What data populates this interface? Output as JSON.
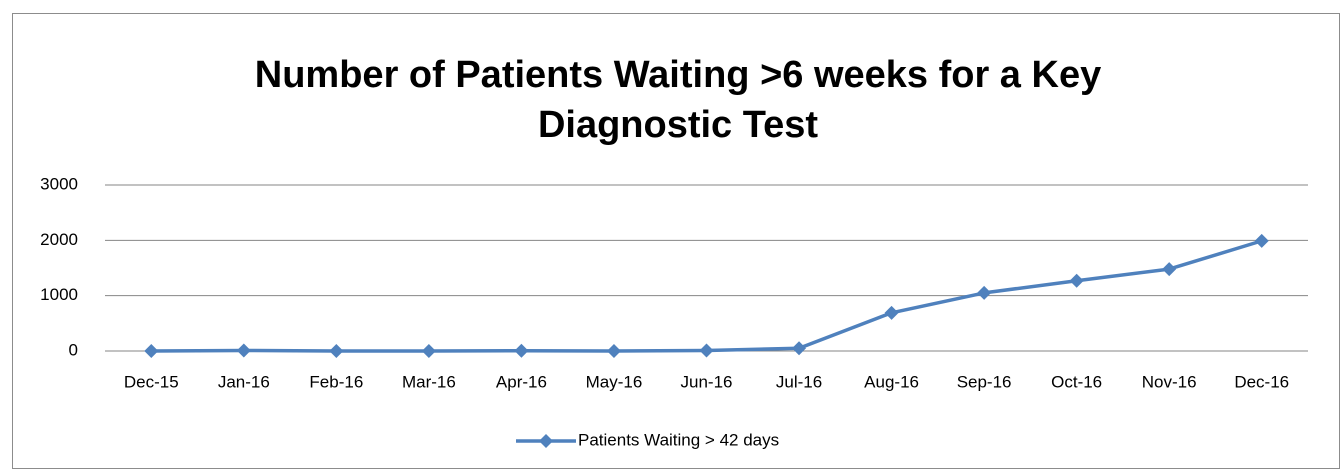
{
  "chart_data": {
    "type": "line",
    "title": "Number of Patients Waiting >6 weeks for a Key Diagnostic Test",
    "categories": [
      "Dec-15",
      "Jan-16",
      "Feb-16",
      "Mar-16",
      "Apr-16",
      "May-16",
      "Jun-16",
      "Jul-16",
      "Aug-16",
      "Sep-16",
      "Oct-16",
      "Nov-16",
      "Dec-16"
    ],
    "series": [
      {
        "name": "Patients Waiting > 42 days",
        "color": "#4f81bd",
        "values": [
          0,
          10,
          0,
          0,
          5,
          0,
          10,
          50,
          690,
          1050,
          1270,
          1480,
          1990
        ]
      }
    ],
    "ylim": [
      0,
      3000
    ],
    "yticks": [
      0,
      1000,
      2000,
      3000
    ],
    "grid": true,
    "legend": "bottom"
  }
}
